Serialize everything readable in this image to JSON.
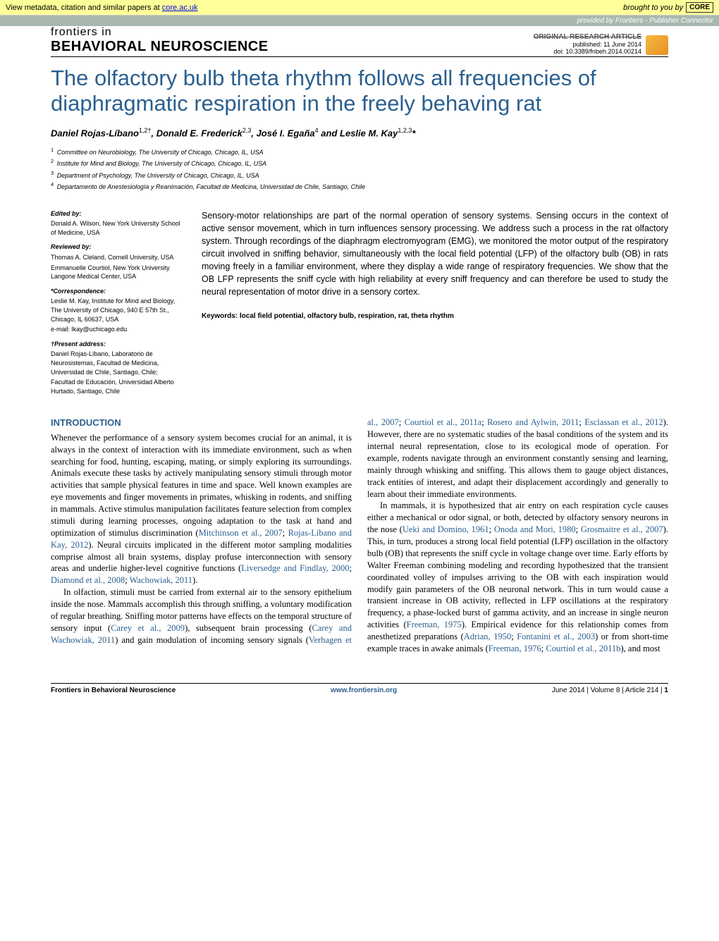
{
  "core_banner": {
    "left_prefix": "View metadata, citation and similar papers at ",
    "link_text": "core.ac.uk",
    "right_text": "brought to you by",
    "logo": "CORE"
  },
  "provided_banner": "provided by Frontiers - Publisher Connector",
  "journal": {
    "top_line": "frontiers in",
    "name": "BEHAVIORAL NEUROSCIENCE",
    "article_type": "ORIGINAL RESEARCH ARTICLE",
    "published": "published: 11 June 2014",
    "doi": "doi: 10.3389/fnbeh.2014.00214"
  },
  "title": "The olfactory bulb theta rhythm follows all frequencies of diaphragmatic respiration in the freely behaving rat",
  "authors_html": "Daniel Rojas-Líbano<sup>1,2†</sup>, Donald E. Frederick<sup>2,3</sup>, José I. Egaña<sup>4</sup> and Leslie M. Kay<sup>1,2,3</sup>*",
  "affiliations": [
    "Committee on Neurobiology, The University of Chicago, Chicago, IL, USA",
    "Institute for Mind and Biology, The University of Chicago, Chicago, IL, USA",
    "Department of Psychology, The University of Chicago, Chicago, IL, USA",
    "Departamento de Anestesiología y Reanimación, Facultad de Medicina, Universidad de Chile, Santiago, Chile"
  ],
  "sidebar": {
    "edited_by_label": "Edited by:",
    "edited_by": "Donald A. Wilson, New York University School of Medicine, USA",
    "reviewed_by_label": "Reviewed by:",
    "reviewed_by_1": "Thomas A. Cleland, Cornell University, USA",
    "reviewed_by_2": "Emmanuelle Courtiol, New York University Langone Medical Center, USA",
    "correspondence_label": "*Correspondence:",
    "correspondence": "Leslie M. Kay, Institute for Mind and Biology, The University of Chicago, 940 E 57th St., Chicago, IL 60637, USA",
    "email": "e-mail: lkay@uchicago.edu",
    "present_label": "†Present address:",
    "present_1": "Daniel Rojas-Líbano, Laboratorio de Neurosistemas, Facultad de Medicina, Universidad de Chile, Santiago, Chile;",
    "present_2": "Facultad de Educación, Universidad Alberto Hurtado, Santiago, Chile"
  },
  "abstract": "Sensory-motor relationships are part of the normal operation of sensory systems. Sensing occurs in the context of active sensor movement, which in turn influences sensory processing. We address such a process in the rat olfactory system. Through recordings of the diaphragm electromyogram (EMG), we monitored the motor output of the respiratory circuit involved in sniffing behavior, simultaneously with the local field potential (LFP) of the olfactory bulb (OB) in rats moving freely in a familiar environment, where they display a wide range of respiratory frequencies. We show that the OB LFP represents the sniff cycle with high reliability at every sniff frequency and can therefore be used to study the neural representation of motor drive in a sensory cortex.",
  "keywords": "Keywords: local field potential, olfactory bulb, respiration, rat, theta rhythm",
  "intro_head": "INTRODUCTION",
  "body": {
    "p1a": "Whenever the performance of a sensory system becomes crucial for an animal, it is always in the context of interaction with its immediate environment, such as when searching for food, hunting, escaping, mating, or simply exploring its surroundings. Animals execute these tasks by actively manipulating sensory stimuli through motor activities that sample physical features in time and space. Well known examples are eye movements and finger movements in primates, whisking in rodents, and sniffing in mammals. Active stimulus manipulation facilitates feature selection from complex stimuli during learning processes, ongoing adaptation to the task at hand and optimization of stimulus discrimination (",
    "c1": "Mitchinson et al., 2007",
    "sep1": "; ",
    "c2": "Rojas-Líbano and Kay, 2012",
    "p1b": "). Neural circuits implicated in the different motor sampling modalities comprise almost all brain systems, display profuse interconnection with sensory areas and underlie higher-level cognitive functions (",
    "c3": "Liversedge and Findlay, 2000",
    "sep2": "; ",
    "c4": "Diamond et al., 2008",
    "sep3": "; ",
    "c5": "Wachowiak, 2011",
    "p1c": ").",
    "p2a": "In olfaction, stimuli must be carried from external air to the sensory epithelium inside the nose. Mammals accomplish this through sniffing, a voluntary modification of regular breathing. Sniffing motor patterns have effects on the temporal structure of sensory input (",
    "c6": "Carey et al., 2009",
    "p2b": "), subsequent brain processing (",
    "c7": "Carey and Wachowiak, 2011",
    "p2c": ") and gain modulation of incoming sensory signals (",
    "c8": "Verhagen et al., 2007",
    "sep4": "; ",
    "c9": "Courtiol et al., 2011a",
    "sep5": "; ",
    "c10": "Rosero and Aylwin, 2011",
    "sep6": "; ",
    "c11": "Esclassan et al., 2012",
    "p2d": "). However, there are no systematic studies of the basal conditions of the system and its internal neural representation, close to its ecological mode of operation. For example, rodents navigate through an environment constantly sensing and learning, mainly through whisking and sniffing. This allows them to gauge object distances, track entities of interest, and adapt their displacement accordingly and generally to learn about their immediate environments.",
    "p3a": "In mammals, it is hypothesized that air entry on each respiration cycle causes either a mechanical or odor signal, or both, detected by olfactory sensory neurons in the nose (",
    "c12": "Ueki and Domino, 1961",
    "sep7": "; ",
    "c13": "Onoda and Mori, 1980",
    "sep8": "; ",
    "c14": "Grosmaitre et al., 2007",
    "p3b": "). This, in turn, produces a strong local field potential (LFP) oscillation in the olfactory bulb (OB) that represents the sniff cycle in voltage change over time. Early efforts by Walter Freeman combining modeling and recording hypothesized that the transient coordinated volley of impulses arriving to the OB with each inspiration would modify gain parameters of the OB neuronal network. This in turn would cause a transient increase in OB activity, reflected in LFP oscillations at the respiratory frequency, a phase-locked burst of gamma activity, and an increase in single neuron activities (",
    "c15": "Freeman, 1975",
    "p3c": "). Empirical evidence for this relationship comes from anesthetized preparations (",
    "c16": "Adrian, 1950",
    "sep9": "; ",
    "c17": "Fontanini et al., 2003",
    "p3d": ") or from short-time example traces in awake animals (",
    "c18": "Freeman, 1976",
    "sep10": "; ",
    "c19": "Courtiol et al., 2011b",
    "p3e": "), and most"
  },
  "footer": {
    "left": "Frontiers in Behavioral Neuroscience",
    "mid": "www.frontiersin.org",
    "right_prefix": "June 2014 | Volume 8 | Article 214 | ",
    "page": "1"
  },
  "colors": {
    "accent": "#2b5f8f",
    "banner_bg": "#ffff99",
    "provided_bg": "#a8b8b0"
  }
}
